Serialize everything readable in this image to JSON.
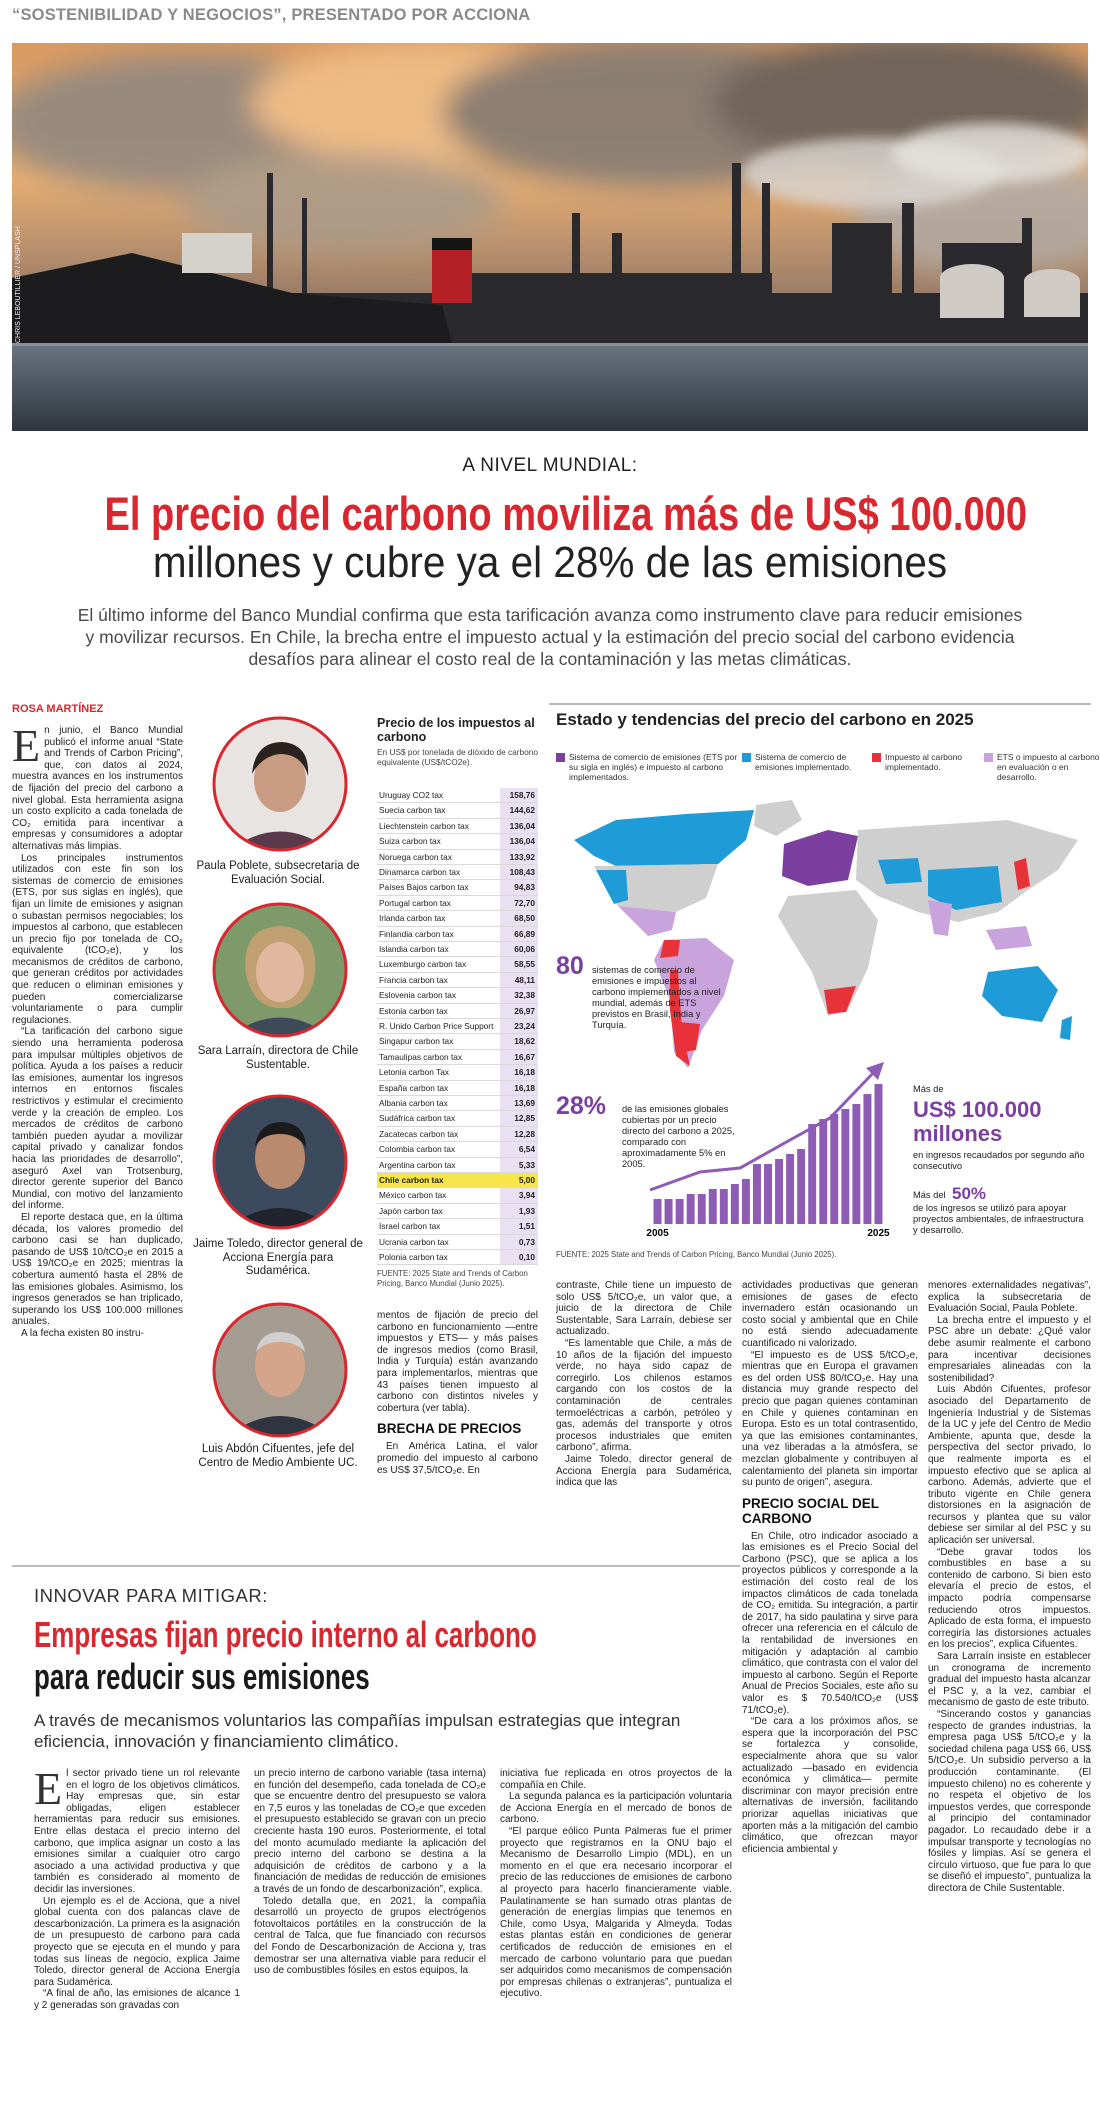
{
  "kicker": "“SOSTENIBILIDAD Y NEGOCIOS”, PRESENTADO POR ACCIONA",
  "photo_credit": "CHRIS LEBOUTILLIER / UNSPLASH",
  "article": {
    "section": "A NIVEL MUNDIAL:",
    "headline_1": "El precio del carbono moviliza más de US$ 100.000",
    "headline_2": "millones y cubre ya el 28% de las emisiones",
    "deck": "El último informe del Banco Mundial confirma que esta tarificación avanza como instrumento clave para reducir emisiones y movilizar recursos. En Chile, la brecha entre el impuesto actual y la estimación del precio social del carbono evidencia desafíos para alinear el costo real de la contaminación y las metas climáticas.",
    "byline": "ROSA MARTÍNEZ",
    "columns": [
      [
        {
          "p": "En junio, el Banco Mundial publicó el informe anual “State and Trends of Carbon Pricing”, que, con datos al 2024, muestra avances en los instrumentos de fijación del precio del carbono a nivel global. Esta herramienta asigna un costo explícito a cada tonelada de CO₂ emitida para incentivar a empresas y consumidores a adoptar alternativas más limpias."
        },
        {
          "p": "Los principales instrumentos utilizados con este fin son los sistemas de comercio de emisiones (ETS, por sus siglas en inglés), que fijan un límite de emisiones y asignan o subastan permisos negociables; los impuestos al carbono, que establecen un precio fijo por tonelada de CO₂ equivalente (tCO₂e), y los mecanismos de créditos de carbono, que generan créditos por actividades que reducen o eliminan emisiones y pueden comercializarse voluntariamente o para cumplir regulaciones."
        },
        {
          "p": "“La tarificación del carbono sigue siendo una herramienta poderosa para impulsar múltiples objetivos de política. Ayuda a los países a reducir las emisiones, aumentar los ingresos internos en entornos fiscales restrictivos y estimular el crecimiento verde y la creación de empleo. Los mercados de créditos de carbono también pueden ayudar a movilizar capital privado y canalizar fondos hacia las prioridades de desarrollo”, aseguró Axel van Trotsenburg, director gerente superior del Banco Mundial, con motivo del lanzamiento del informe."
        },
        {
          "p": "El reporte destaca que, en la última década, los valores promedio del carbono casi se han duplicado, pasando de US$ 10/tCO₂e en 2015 a US$ 19/tCO₂e en 2025; mientras la cobertura aumentó hasta el 28% de las emisiones globales. Asimismo, los ingresos generados se han triplicado, superando los US$ 100.000 millones anuales."
        },
        {
          "p": "A la fecha existen 80 instru-"
        }
      ],
      [
        {
          "cont": "mentos de fijación de precio del carbono en funcionamiento —entre impuestos y ETS— y más países de ingresos medios (como Brasil, India y Turquía) están avanzando para implementarlos, mientras que 43 países tienen impuesto al carbono con distintos niveles y cobertura (ver tabla)."
        },
        {
          "subhead": "BRECHA DE PRECIOS"
        },
        {
          "p": "En América Latina, el valor promedio del impuesto al carbono es US$ 37,5/tCO₂e. En"
        }
      ],
      [
        {
          "cont": "contraste, Chile tiene un impuesto de solo US$ 5/tCO₂e, un valor que, a juicio de la directora de Chile Sustentable, Sara Larraín, debiese ser actualizado."
        },
        {
          "p": "“Es lamentable que Chile, a más de 10 años de la fijación del impuesto verde, no haya sido capaz de corregirlo. Los chilenos estamos cargando con los costos de la contaminación de centrales termoeléctricas a carbón, petróleo y gas, además del transporte y otros procesos industriales que emiten carbono”, afirma."
        },
        {
          "p": "Jaime Toledo, director general de Acciona Energía para Sudamérica, indica que las"
        }
      ],
      [
        {
          "cont": "actividades productivas que generan emisiones de gases de efecto invernadero están ocasionando un costo social y ambiental que en Chile no está siendo adecuadamente cuantificado ni valorizado."
        },
        {
          "p": "“El impuesto es de US$ 5/tCO₂e, mientras que en Europa el gravamen es del orden US$ 80/tCO₂e. Hay una distancia muy grande respecto del precio que pagan quienes contaminan en Chile y quienes contaminan en Europa. Esto es un total contrasentido, ya que las emisiones contaminantes, una vez liberadas a la atmósfera, se mezclan globalmente y contribuyen al calentamiento del planeta sin importar su punto de origen”, asegura."
        },
        {
          "subhead": "PRECIO SOCIAL DEL CARBONO"
        },
        {
          "p": "En Chile, otro indicador asociado a las emisiones es el Precio Social del Carbono (PSC), que se aplica a los proyectos públicos y corresponde a la estimación del costo real de los impactos climáticos de cada tonelada de CO₂ emitida. Su integración, a partir de 2017, ha sido paulatina y sirve para ofrecer una referencia en el cálculo de la rentabilidad de inversiones en mitigación y adaptación al cambio climático, que contrasta con el valor del impuesto al carbono. Según el Reporte Anual de Precios Sociales, este año su valor es $ 70.540/tCO₂e (US$ 71/tCO₂e)."
        },
        {
          "p": "“De cara a los próximos años, se espera que la incorporación del PSC se fortalezca y consolide, especialmente ahora que su valor actualizado —basado en evidencia económica y climática— permite discriminar con mayor precisión entre alternativas de inversión, facilitando priorizar aquellas iniciativas que aporten más a la mitigación del cambio climático, que ofrezcan mayor eficiencia ambiental y"
        }
      ],
      [
        {
          "cont": "menores externalidades negativas”, explica la subsecretaria de Evaluación Social, Paula Poblete."
        },
        {
          "p": "La brecha entre el impuesto y el PSC abre un debate: ¿Qué valor debe asumir realmente el carbono para incentivar decisiones empresariales alineadas con la sostenibilidad?"
        },
        {
          "p": "Luis Abdón Cifuentes, profesor asociado del Departamento de Ingeniería Industrial y de Sistemas de la UC y jefe del Centro de Medio Ambiente, apunta que, desde la perspectiva del sector privado, lo que realmente importa es el impuesto efectivo que se aplica al carbono. Además, advierte que el tributo vigente en Chile genera distorsiones en la asignación de recursos y plantea que su valor debiese ser similar al del PSC y su aplicación ser universal."
        },
        {
          "p": "“Debe gravar todos los combustibles en base a su contenido de carbono. Si bien esto elevaría el precio de estos, el impacto podría compensarse reduciendo otros impuestos. Aplicado de esta forma, el impuesto corregiría las distorsiones actuales en los precios”, explica Cifuentes."
        },
        {
          "p": "Sara Larraín insiste en establecer un cronograma de incremento gradual del impuesto hasta alcanzar el PSC y, a la vez, cambiar el mecanismo de gasto de este tributo."
        },
        {
          "p": "“Sincerando costos y ganancias respecto de grandes industrias, la empresa paga US$ 5/tCO₂e y la sociedad chilena paga US$ 66, US$ 5/tCO₂e. Un subsidio perverso a la producción contaminante. (El impuesto chileno) no es coherente y no respeta el objetivo de los impuestos verdes, que corresponde al principio del contaminador pagador. Lo recaudado debe ir a impulsar transporte y tecnologías no fósiles y limpias. Así se genera el círculo virtuoso, que fue para lo que se diseñó el impuesto”, puntualiza la directora de Chile Sustentable."
        }
      ]
    ]
  },
  "portraits": [
    {
      "caption": "Paula Poblete, subsecretaria de Evaluación Social."
    },
    {
      "caption": "Sara Larraín, directora de Chile Sustentable."
    },
    {
      "caption": "Jaime Toledo, director general de Acciona Energía para Sudamérica."
    },
    {
      "caption": "Luis Abdón Cifuentes, jefe del Centro de Medio Ambiente UC."
    }
  ],
  "tax_table": {
    "title": "Precio de los impuestos al carbono",
    "subtitle": "En US$ por tonelada de dióxido de carbono equivalente (US$/tCO2e).",
    "rows": [
      [
        "Uruguay CO2 tax",
        "158,76"
      ],
      [
        "Suecia carbon tax",
        "144,62"
      ],
      [
        "Liechtenstein carbon tax",
        "136,04"
      ],
      [
        "Suiza carbon tax",
        "136,04"
      ],
      [
        "Noruega carbon tax",
        "133,92"
      ],
      [
        "Dinamarca carbon tax",
        "108,43"
      ],
      [
        "Países Bajos carbon tax",
        "94,83"
      ],
      [
        "Portugal carbon tax",
        "72,70"
      ],
      [
        "Irlanda carbon tax",
        "68,50"
      ],
      [
        "Finlandia carbon tax",
        "66,89"
      ],
      [
        "Islandia carbon tax",
        "60,06"
      ],
      [
        "Luxemburgo carbon tax",
        "58,55"
      ],
      [
        "Francia carbon tax",
        "48,11"
      ],
      [
        "Eslovenia carbon tax",
        "32,38"
      ],
      [
        "Estonia carbon tax",
        "26,97"
      ],
      [
        "R. Unido Carbon Price Support",
        "23,24"
      ],
      [
        "Singapur carbon tax",
        "18,62"
      ],
      [
        "Tamaulipas carbon tax",
        "16,67"
      ],
      [
        "Letonia carbon Tax",
        "16,18"
      ],
      [
        "España carbon tax",
        "16,18"
      ],
      [
        "Albania carbon tax",
        "13,69"
      ],
      [
        "Sudáfrica carbon tax",
        "12,85"
      ],
      [
        "Zacatecas carbon tax",
        "12,28"
      ],
      [
        "Colombia carbon tax",
        "6,54"
      ],
      [
        "Argentina carbon tax",
        "5,33"
      ],
      [
        "Chile carbon tax",
        "5,00"
      ],
      [
        "México carbon tax",
        "3,94"
      ],
      [
        "Japón carbon tax",
        "1,93"
      ],
      [
        "Israel carbon tax",
        "1,51"
      ],
      [
        "Ucrania carbon tax",
        "0,73"
      ],
      [
        "Polonia carbon tax",
        "0,10"
      ]
    ],
    "highlight_row": 25,
    "source": "FUENTE: 2025 State and Trends of Carbon Pricing, Banco Mundial (Junio 2025)."
  },
  "carbon_map": {
    "title": "Estado y tendencias del precio del carbono en 2025",
    "legend": [
      {
        "label": "Sistema de comercio de emisiones (ETS por su sigla en inglés) e impuesto al carbono implementados.",
        "color": "#7b3fa0"
      },
      {
        "label": "Sistema de comercio de emisiones implementado.",
        "color": "#1f9bd7"
      },
      {
        "label": "Impuesto al carbono implementado.",
        "color": "#e8323a"
      },
      {
        "label": "ETS o impuesto al carbono en evaluación o en desarrollo.",
        "color": "#c9a3dc"
      }
    ],
    "systems_number": "80",
    "systems_text": "sistemas de comercio de emisiones e impuestos al carbono implementados a nivel mundial, además de ETS previstos en Brasil, India y Turquía.",
    "coverage_number": "28%",
    "coverage_text": "de las emisiones globales cubiertas por un precio directo del carbono a 2025, comparado con aproximadamente 5% en 2005.",
    "revenue_prefix": "Más de",
    "revenue_amount": "US$ 100.000 millones",
    "revenue_text": "en ingresos recaudados por segundo año consecutivo",
    "share_prefix": "Más del",
    "share_number": "50%",
    "share_text": "de los ingresos se utilizó para apoyar proyectos ambientales, de infraestructura y desarrollo.",
    "source": "FUENTE: 2025 State and Trends of Carbon Pricing, Banco Mundial (Junio 2025)."
  },
  "chart_data": {
    "type": "bar",
    "categories": [
      "2005",
      null,
      null,
      null,
      null,
      null,
      null,
      null,
      null,
      null,
      null,
      null,
      null,
      null,
      null,
      null,
      null,
      null,
      null,
      null,
      "2025"
    ],
    "values": [
      5,
      5,
      5,
      6,
      6,
      7,
      7,
      8,
      9,
      12,
      12,
      13,
      14,
      15,
      20,
      21,
      22,
      23,
      24,
      26,
      28
    ],
    "color": "#8e5bb5"
  },
  "sidebar": {
    "section": "INNOVAR PARA MITIGAR:",
    "headline_red": "Empresas fijan precio interno al carbono",
    "headline_black": "para reducir sus emisiones",
    "deck": "A través de mecanismos voluntarios las compañías impulsan estrategias que integran eficiencia, innovación y financiamiento climático.",
    "columns": [
      [
        {
          "p": "El sector privado tiene un rol relevante en el logro de los objetivos climáticos. Hay empresas que, sin estar obligadas, eligen establecer herramientas para reducir sus emisiones. Entre ellas destaca el precio interno del carbono, que implica asignar un costo a las emisiones similar a cualquier otro cargo asociado a una actividad productiva y que también es considerado al momento de decidir las inversiones."
        },
        {
          "p": "Un ejemplo es el de Acciona, que a nivel global cuenta con dos palancas clave de descarbonización. La primera es la asignación de un presupuesto de carbono para cada proyecto que se ejecuta en el mundo y para todas sus líneas de negocio, explica Jaime Toledo, director general de Acciona Energía para Sudamérica."
        },
        {
          "p": "“A final de año, las emisiones de alcance 1 y 2 generadas son gravadas con"
        }
      ],
      [
        {
          "cont": "un precio interno de carbono variable (tasa interna) en función del desempeño, cada tonelada de CO₂e que se encuentre dentro del presupuesto se valora en 7,5 euros y las toneladas de CO₂e que exceden el presupuesto establecido se gravan con un precio creciente hasta 190 euros. Posteriormente, el total del monto acumulado mediante la aplicación del precio interno del carbono se destina a la adquisición de créditos de carbono y a la financiación de medidas de reducción de emisiones a través de un fondo de descarbonización”, explica."
        },
        {
          "p": "Toledo detalla que, en 2021, la compañía desarrolló un proyecto de grupos electrógenos fotovoltaicos portátiles en la construcción de la central de Talca, que fue financiado con recursos del Fondo de Descarbonización de Acciona y, tras demostrar ser una alternativa viable para reducir el uso de combustibles fósiles en estos equipos, la"
        }
      ],
      [
        {
          "cont": "iniciativa fue replicada en otros proyectos de la compañía en Chile."
        },
        {
          "p": "La segunda palanca es la participación voluntaria de Acciona Energía en el mercado de bonos de carbono."
        },
        {
          "p": "“El parque eólico Punta Palmeras fue el primer proyecto que registramos en la ONU bajo el Mecanismo de Desarrollo Limpio (MDL), en un momento en el que era necesario incorporar el precio de las reducciones de emisiones de carbono al proyecto para hacerlo financieramente viable. Paulatinamente se han sumado otras plantas de generación de energías limpias que tenemos en Chile, como Usya, Malgarida y Almeyda. Todas estas plantas están en condiciones de generar certificados de reducción de emisiones en el mercado de carbono voluntario para que puedan ser adquiridos como mecanismos de compensación por empresas chilenas o extranjeras”, puntualiza el ejecutivo."
        }
      ]
    ]
  }
}
